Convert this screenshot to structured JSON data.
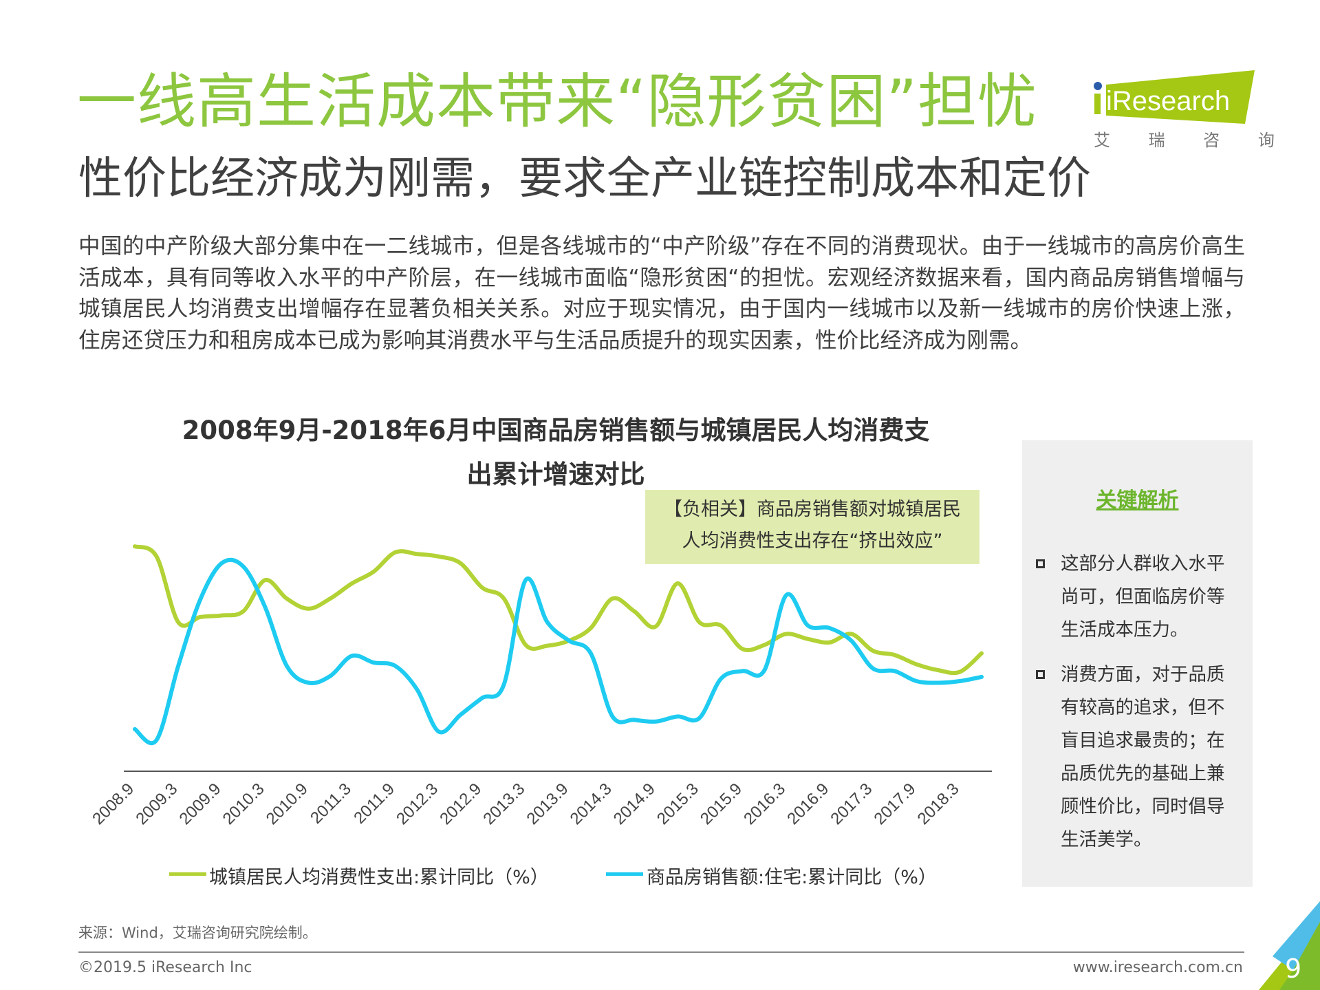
{
  "header": {
    "title": "一线高生活成本带来“隐形贫困”担忧",
    "subtitle": "性价比经济成为刚需，要求全产业链控制成本和定价",
    "logo": {
      "wordmark": "iResearch",
      "chinese": "艾 瑞 咨 询",
      "color": "#a4c813"
    }
  },
  "intro": "中国的中产阶级大部分集中在一二线城市，但是各线城市的“中产阶级”存在不同的消费现状。由于一线城市的高房价高生活成本，具有同等收入水平的中产阶层，在一线城市面临“隐形贫困“的担忧。宏观经济数据来看，国内商品房销售增幅与城镇居民人均消费支出增幅存在显著负相关关系。对应于现实情况，由于国内一线城市以及新一线城市的房价快速上涨，住房还贷压力和租房成本已成为影响其消费水平与生活品质提升的现实因素，性价比经济成为刚需。",
  "callout": {
    "line1": "【负相关】商品房销售额对城镇居民",
    "line2": "人均消费性支出存在“挤出效应”"
  },
  "panel": {
    "title": "关键解析",
    "bullets": [
      [
        "这部分人群收入水平",
        "尚可，但面临房价等",
        "生活成本压力。"
      ],
      [
        "消费方面，对于品质",
        "有较高的追求，但不",
        "盲目追求最贵的；在",
        "品质优先的基础上兼",
        "顾性价比，同时倡导",
        "生活美学。"
      ]
    ]
  },
  "chart_data": {
    "type": "line",
    "title": "2008年9月-2018年6月中国商品房销售额与城镇居民人均消费支出累计增速对比",
    "title_lines": [
      "2008年9月-2018年6月中国商品房销售额与城镇居民人均消费支",
      "出累计增速对比"
    ],
    "xlabel": "",
    "ylabel": "",
    "y_axis_labels_shown": false,
    "ylim": [
      0,
      300
    ],
    "grid": false,
    "legend_position": "bottom",
    "x_tick_labels": [
      "2008.9",
      "2009.3",
      "2009.9",
      "2010.3",
      "2010.9",
      "2011.3",
      "2011.9",
      "2012.3",
      "2012.9",
      "2013.3",
      "2013.9",
      "2014.3",
      "2014.9",
      "2015.3",
      "2015.9",
      "2016.3",
      "2016.9",
      "2017.3",
      "2017.9",
      "2018.3"
    ],
    "x": [
      "2008.9",
      "2008.12",
      "2009.3",
      "2009.6",
      "2009.9",
      "2009.12",
      "2010.3",
      "2010.6",
      "2010.9",
      "2010.12",
      "2011.3",
      "2011.6",
      "2011.9",
      "2011.12",
      "2012.3",
      "2012.6",
      "2012.9",
      "2012.12",
      "2013.3",
      "2013.6",
      "2013.9",
      "2013.12",
      "2014.3",
      "2014.6",
      "2014.9",
      "2014.12",
      "2015.3",
      "2015.6",
      "2015.9",
      "2015.12",
      "2016.3",
      "2016.6",
      "2016.9",
      "2016.12",
      "2017.3",
      "2017.6",
      "2017.9",
      "2017.12",
      "2018.3",
      "2018.6"
    ],
    "series": [
      {
        "name": "城镇居民人均消费性支出:累计同比（%）",
        "color": "#b2d235",
        "values": [
          267,
          255,
          177,
          183,
          185,
          190,
          227,
          205,
          193,
          205,
          223,
          237,
          260,
          258,
          255,
          247,
          218,
          205,
          150,
          149,
          155,
          170,
          205,
          190,
          172,
          223,
          177,
          173,
          145,
          150,
          163,
          157,
          153,
          163,
          143,
          138,
          127,
          120,
          118,
          140
        ]
      },
      {
        "name": "商品房销售额:住宅:累计同比（%）",
        "color": "#1ecbf1",
        "values": [
          50,
          37,
          125,
          203,
          247,
          243,
          195,
          125,
          105,
          113,
          137,
          129,
          125,
          97,
          47,
          67,
          87,
          103,
          227,
          177,
          155,
          140,
          65,
          61,
          59,
          65,
          63,
          110,
          119,
          120,
          209,
          173,
          170,
          155,
          122,
          119,
          107,
          105,
          107,
          112
        ]
      }
    ]
  },
  "footer": {
    "source": "来源：Wind，艾瑞咨询研究院绘制。",
    "copyright": "©2019.5 iResearch Inc",
    "site": "www.iresearch.com.cn",
    "page": "9"
  }
}
